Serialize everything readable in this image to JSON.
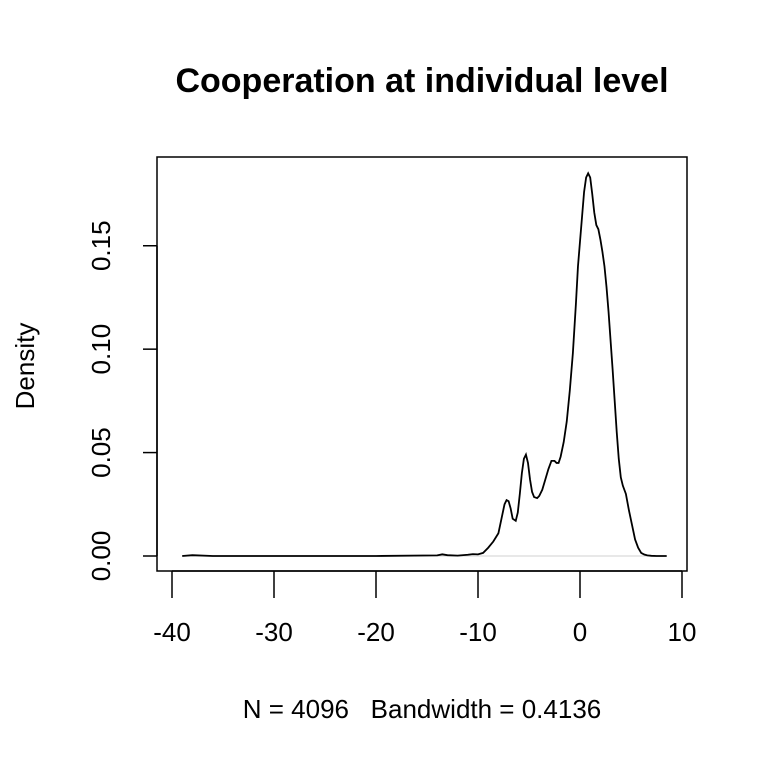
{
  "chart_data": {
    "type": "line",
    "title": "Cooperation at individual level",
    "xlabel": "N = 4096   Bandwidth = 0.4136",
    "ylabel": "Density",
    "xlim": [
      -40,
      10
    ],
    "ylim": [
      0,
      0.18
    ],
    "x_ticks": [
      -40,
      -30,
      -20,
      -10,
      0,
      10
    ],
    "x_tick_labels": [
      "-40",
      "-30",
      "-20",
      "-10",
      "0",
      "10"
    ],
    "y_ticks": [
      0.0,
      0.05,
      0.1,
      0.15
    ],
    "y_tick_labels": [
      "0.00",
      "0.05",
      "0.10",
      "0.15"
    ],
    "grid": false,
    "series": [
      {
        "x": [
          -39.0,
          -38.0,
          -36.0,
          -30.0,
          -20.0,
          -14.0,
          -13.5,
          -13.0,
          -12.0,
          -11.0,
          -10.5,
          -10.0,
          -9.5,
          -9.0,
          -8.5,
          -8.0,
          -7.7,
          -7.4,
          -7.2,
          -7.0,
          -6.8,
          -6.6,
          -6.3,
          -6.1,
          -5.9,
          -5.7,
          -5.5,
          -5.3,
          -5.1,
          -4.9,
          -4.7,
          -4.5,
          -4.2,
          -4.0,
          -3.7,
          -3.4,
          -3.1,
          -2.8,
          -2.5,
          -2.3,
          -2.1,
          -1.9,
          -1.6,
          -1.3,
          -1.0,
          -0.7,
          -0.4,
          -0.2,
          0.0,
          0.2,
          0.4,
          0.6,
          0.8,
          1.0,
          1.2,
          1.4,
          1.6,
          1.8,
          2.0,
          2.2,
          2.4,
          2.6,
          2.8,
          3.0,
          3.2,
          3.4,
          3.6,
          3.8,
          4.0,
          4.2,
          4.5,
          4.8,
          5.1,
          5.4,
          5.7,
          6.0,
          6.3,
          6.6,
          7.0,
          7.5,
          8.0,
          8.5
        ],
        "y": [
          0.0,
          0.0004,
          0.0,
          0.0,
          0.0,
          0.0003,
          0.0008,
          0.0004,
          0.0002,
          0.0006,
          0.0009,
          0.0008,
          0.0015,
          0.004,
          0.007,
          0.011,
          0.018,
          0.025,
          0.027,
          0.0265,
          0.023,
          0.018,
          0.017,
          0.021,
          0.03,
          0.04,
          0.047,
          0.049,
          0.045,
          0.037,
          0.031,
          0.0285,
          0.028,
          0.029,
          0.032,
          0.037,
          0.042,
          0.046,
          0.046,
          0.045,
          0.045,
          0.048,
          0.055,
          0.065,
          0.08,
          0.098,
          0.122,
          0.14,
          0.152,
          0.164,
          0.176,
          0.183,
          0.185,
          0.183,
          0.175,
          0.166,
          0.16,
          0.158,
          0.153,
          0.147,
          0.14,
          0.13,
          0.118,
          0.104,
          0.09,
          0.075,
          0.06,
          0.047,
          0.038,
          0.034,
          0.03,
          0.022,
          0.015,
          0.008,
          0.004,
          0.0015,
          0.0007,
          0.0003,
          0.0001,
          0.0,
          0.0,
          0.0
        ]
      }
    ]
  }
}
